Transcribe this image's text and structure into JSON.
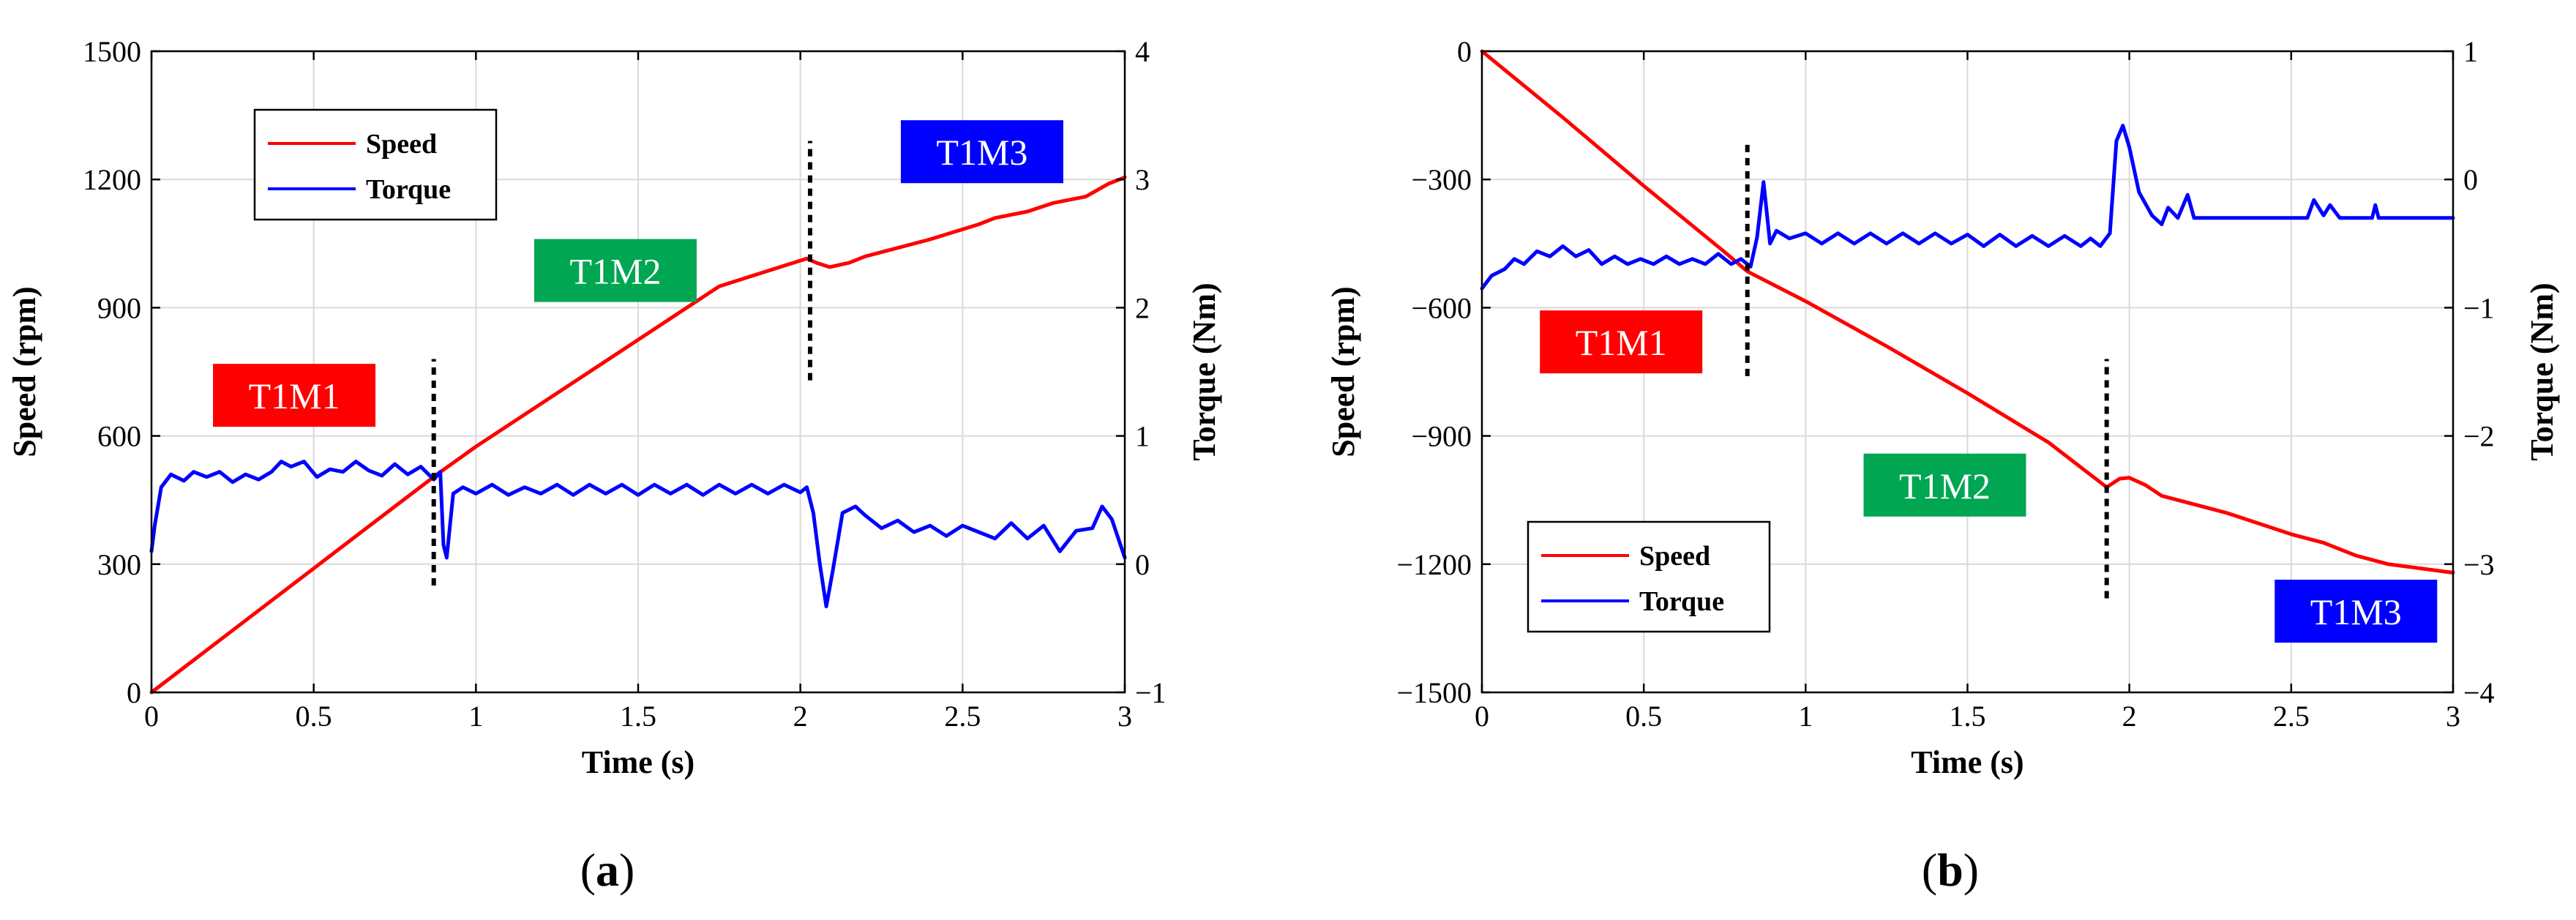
{
  "chart_data": [
    {
      "panel": "a",
      "type": "line",
      "caption": "(a)",
      "caption_open": "(",
      "caption_letter": "a",
      "caption_close": ")",
      "xlabel": "Time (s)",
      "ylabel": "Speed (rpm)",
      "y2label": "Torque (Nm)",
      "xlim": [
        0,
        3
      ],
      "ylim": [
        0,
        1500
      ],
      "y2lim": [
        -1,
        4
      ],
      "xticks": [
        0,
        0.5,
        1,
        1.5,
        2,
        2.5,
        3
      ],
      "xticklabels": [
        "0",
        "0.5",
        "1",
        "1.5",
        "2",
        "2.5",
        "3"
      ],
      "yticks": [
        0,
        300,
        600,
        900,
        1200,
        1500
      ],
      "yticklabels": [
        "0",
        "300",
        "600",
        "900",
        "1200",
        "1500"
      ],
      "y2ticks": [
        -1,
        0,
        1,
        2,
        3,
        4
      ],
      "y2ticklabels": [
        "−1",
        "0",
        "1",
        "2",
        "3",
        "4"
      ],
      "grid": true,
      "legend": {
        "placement": "top-left",
        "entries": [
          "Speed",
          "Torque"
        ]
      },
      "series": [
        {
          "name": "Speed",
          "axis": "left",
          "color": "#ff0000",
          "points": [
            [
              0,
              0
            ],
            [
              0.25,
              145
            ],
            [
              0.5,
              290
            ],
            [
              0.75,
              435
            ],
            [
              0.88,
              510
            ],
            [
              1.0,
              575
            ],
            [
              1.25,
              700
            ],
            [
              1.5,
              825
            ],
            [
              1.75,
              950
            ],
            [
              2.02,
              1015
            ],
            [
              2.05,
              1005
            ],
            [
              2.09,
              995
            ],
            [
              2.15,
              1005
            ],
            [
              2.2,
              1020
            ],
            [
              2.4,
              1060
            ],
            [
              2.55,
              1095
            ],
            [
              2.6,
              1110
            ],
            [
              2.7,
              1125
            ],
            [
              2.78,
              1145
            ],
            [
              2.88,
              1160
            ],
            [
              2.95,
              1190
            ],
            [
              3.0,
              1205
            ]
          ]
        },
        {
          "name": "Torque",
          "axis": "right",
          "color": "#0000ff",
          "points": [
            [
              0,
              0.1
            ],
            [
              0.01,
              0.3
            ],
            [
              0.03,
              0.6
            ],
            [
              0.06,
              0.7
            ],
            [
              0.1,
              0.65
            ],
            [
              0.13,
              0.72
            ],
            [
              0.17,
              0.68
            ],
            [
              0.21,
              0.72
            ],
            [
              0.25,
              0.64
            ],
            [
              0.29,
              0.7
            ],
            [
              0.33,
              0.66
            ],
            [
              0.37,
              0.72
            ],
            [
              0.4,
              0.8
            ],
            [
              0.43,
              0.76
            ],
            [
              0.47,
              0.8
            ],
            [
              0.51,
              0.68
            ],
            [
              0.55,
              0.74
            ],
            [
              0.59,
              0.72
            ],
            [
              0.63,
              0.8
            ],
            [
              0.67,
              0.73
            ],
            [
              0.71,
              0.69
            ],
            [
              0.75,
              0.78
            ],
            [
              0.79,
              0.7
            ],
            [
              0.83,
              0.76
            ],
            [
              0.87,
              0.66
            ],
            [
              0.89,
              0.72
            ],
            [
              0.9,
              0.15
            ],
            [
              0.91,
              0.05
            ],
            [
              0.93,
              0.55
            ],
            [
              0.96,
              0.6
            ],
            [
              1.0,
              0.55
            ],
            [
              1.05,
              0.62
            ],
            [
              1.1,
              0.54
            ],
            [
              1.15,
              0.6
            ],
            [
              1.2,
              0.55
            ],
            [
              1.25,
              0.62
            ],
            [
              1.3,
              0.54
            ],
            [
              1.35,
              0.62
            ],
            [
              1.4,
              0.55
            ],
            [
              1.45,
              0.62
            ],
            [
              1.5,
              0.54
            ],
            [
              1.55,
              0.62
            ],
            [
              1.6,
              0.55
            ],
            [
              1.65,
              0.62
            ],
            [
              1.7,
              0.54
            ],
            [
              1.75,
              0.62
            ],
            [
              1.8,
              0.55
            ],
            [
              1.85,
              0.62
            ],
            [
              1.9,
              0.55
            ],
            [
              1.95,
              0.62
            ],
            [
              2.0,
              0.56
            ],
            [
              2.02,
              0.6
            ],
            [
              2.04,
              0.4
            ],
            [
              2.06,
              0.0
            ],
            [
              2.08,
              -0.33
            ],
            [
              2.1,
              -0.05
            ],
            [
              2.13,
              0.4
            ],
            [
              2.17,
              0.45
            ],
            [
              2.2,
              0.38
            ],
            [
              2.25,
              0.28
            ],
            [
              2.3,
              0.34
            ],
            [
              2.35,
              0.25
            ],
            [
              2.4,
              0.3
            ],
            [
              2.45,
              0.22
            ],
            [
              2.5,
              0.3
            ],
            [
              2.55,
              0.25
            ],
            [
              2.6,
              0.2
            ],
            [
              2.65,
              0.32
            ],
            [
              2.7,
              0.2
            ],
            [
              2.75,
              0.3
            ],
            [
              2.8,
              0.1
            ],
            [
              2.85,
              0.26
            ],
            [
              2.9,
              0.28
            ],
            [
              2.93,
              0.45
            ],
            [
              2.96,
              0.35
            ],
            [
              3.0,
              0.05
            ]
          ]
        }
      ],
      "annotations": [
        {
          "text": "T1M1",
          "color": "#ff0000",
          "x": 0.44,
          "y": 1500,
          "axis": "right",
          "y2": 0.75
        },
        {
          "text": "T1M2",
          "color": "#00a651",
          "x": 1.43,
          "y": 987
        },
        {
          "text": "T1M3",
          "color": "#0000ff",
          "x": 2.56,
          "y": 1265
        }
      ],
      "annotation_values": [
        {
          "label": "T1M1",
          "x": 0.44,
          "y": 695
        },
        {
          "label": "T1M2",
          "x": 1.43,
          "y": 987
        },
        {
          "label": "T1M3",
          "x": 2.56,
          "y": 1265
        }
      ],
      "vlines": [
        {
          "x": 0.87,
          "y_from": 250,
          "y_to": 780
        },
        {
          "x": 2.03,
          "y_from": 730,
          "y_to": 1290
        }
      ]
    },
    {
      "panel": "b",
      "type": "line",
      "caption": "(b)",
      "caption_open": "(",
      "caption_letter": "b",
      "caption_close": ")",
      "xlabel": "Time (s)",
      "ylabel": "Speed (rpm)",
      "y2label": "Torque (Nm)",
      "xlim": [
        0,
        3
      ],
      "ylim": [
        -1500,
        0
      ],
      "y2lim": [
        -4,
        1
      ],
      "xticks": [
        0,
        0.5,
        1,
        1.5,
        2,
        2.5,
        3
      ],
      "xticklabels": [
        "0",
        "0.5",
        "1",
        "1.5",
        "2",
        "2.5",
        "3"
      ],
      "yticks": [
        -1500,
        -1200,
        -900,
        -600,
        -300,
        0
      ],
      "yticklabels": [
        "−1500",
        "−1200",
        "−900",
        "−600",
        "−300",
        "0"
      ],
      "y2ticks": [
        -4,
        -3,
        -2,
        -1,
        0,
        1
      ],
      "y2ticklabels": [
        "−4",
        "−3",
        "−2",
        "−1",
        "0",
        "1"
      ],
      "grid": true,
      "legend": {
        "placement": "bottom-left",
        "entries": [
          "Speed",
          "Torque"
        ]
      },
      "series": [
        {
          "name": "Speed",
          "axis": "left",
          "color": "#ff0000",
          "points": [
            [
              0,
              0
            ],
            [
              0.25,
              -155
            ],
            [
              0.5,
              -315
            ],
            [
              0.75,
              -470
            ],
            [
              0.82,
              -515
            ],
            [
              1.0,
              -585
            ],
            [
              1.25,
              -690
            ],
            [
              1.5,
              -800
            ],
            [
              1.75,
              -915
            ],
            [
              1.93,
              -1020
            ],
            [
              1.97,
              -1000
            ],
            [
              2.0,
              -998
            ],
            [
              2.05,
              -1015
            ],
            [
              2.1,
              -1040
            ],
            [
              2.3,
              -1080
            ],
            [
              2.5,
              -1130
            ],
            [
              2.6,
              -1150
            ],
            [
              2.7,
              -1180
            ],
            [
              2.8,
              -1200
            ],
            [
              2.9,
              -1210
            ],
            [
              3.0,
              -1220
            ]
          ]
        },
        {
          "name": "Torque",
          "axis": "right",
          "color": "#0000ff",
          "points": [
            [
              0,
              -0.85
            ],
            [
              0.03,
              -0.75
            ],
            [
              0.07,
              -0.7
            ],
            [
              0.1,
              -0.62
            ],
            [
              0.13,
              -0.66
            ],
            [
              0.17,
              -0.56
            ],
            [
              0.21,
              -0.6
            ],
            [
              0.25,
              -0.52
            ],
            [
              0.29,
              -0.6
            ],
            [
              0.33,
              -0.55
            ],
            [
              0.37,
              -0.66
            ],
            [
              0.41,
              -0.6
            ],
            [
              0.45,
              -0.66
            ],
            [
              0.49,
              -0.62
            ],
            [
              0.53,
              -0.66
            ],
            [
              0.57,
              -0.6
            ],
            [
              0.61,
              -0.66
            ],
            [
              0.65,
              -0.62
            ],
            [
              0.69,
              -0.66
            ],
            [
              0.73,
              -0.58
            ],
            [
              0.77,
              -0.66
            ],
            [
              0.8,
              -0.62
            ],
            [
              0.83,
              -0.68
            ],
            [
              0.85,
              -0.45
            ],
            [
              0.87,
              -0.02
            ],
            [
              0.89,
              -0.5
            ],
            [
              0.91,
              -0.4
            ],
            [
              0.95,
              -0.46
            ],
            [
              1.0,
              -0.42
            ],
            [
              1.05,
              -0.5
            ],
            [
              1.1,
              -0.42
            ],
            [
              1.15,
              -0.5
            ],
            [
              1.2,
              -0.42
            ],
            [
              1.25,
              -0.5
            ],
            [
              1.3,
              -0.42
            ],
            [
              1.35,
              -0.5
            ],
            [
              1.4,
              -0.42
            ],
            [
              1.45,
              -0.5
            ],
            [
              1.5,
              -0.43
            ],
            [
              1.55,
              -0.52
            ],
            [
              1.6,
              -0.43
            ],
            [
              1.65,
              -0.52
            ],
            [
              1.7,
              -0.44
            ],
            [
              1.75,
              -0.52
            ],
            [
              1.8,
              -0.44
            ],
            [
              1.85,
              -0.52
            ],
            [
              1.88,
              -0.46
            ],
            [
              1.91,
              -0.52
            ],
            [
              1.94,
              -0.42
            ],
            [
              1.96,
              0.3
            ],
            [
              1.98,
              0.42
            ],
            [
              2.0,
              0.25
            ],
            [
              2.03,
              -0.1
            ],
            [
              2.07,
              -0.28
            ],
            [
              2.1,
              -0.35
            ],
            [
              2.12,
              -0.22
            ],
            [
              2.15,
              -0.3
            ],
            [
              2.18,
              -0.12
            ],
            [
              2.2,
              -0.3
            ],
            [
              2.4,
              -0.3
            ],
            [
              2.55,
              -0.3
            ],
            [
              2.57,
              -0.16
            ],
            [
              2.6,
              -0.28
            ],
            [
              2.62,
              -0.2
            ],
            [
              2.65,
              -0.3
            ],
            [
              2.75,
              -0.3
            ],
            [
              2.76,
              -0.2
            ],
            [
              2.77,
              -0.3
            ],
            [
              3.0,
              -0.3
            ]
          ]
        }
      ],
      "annotations": [
        {
          "text": "T1M1",
          "color": "#ff0000",
          "x": 0.43,
          "y": -680
        },
        {
          "text": "T1M2",
          "color": "#00a651",
          "x": 1.43,
          "y": -1015
        },
        {
          "text": "T1M3",
          "color": "#0000ff",
          "x": 2.7,
          "y": -1310
        }
      ],
      "vlines": [
        {
          "x": 0.82,
          "y_from": -760,
          "y_to": -210
        },
        {
          "x": 1.93,
          "y_from": -1280,
          "y_to": -720
        }
      ]
    }
  ]
}
